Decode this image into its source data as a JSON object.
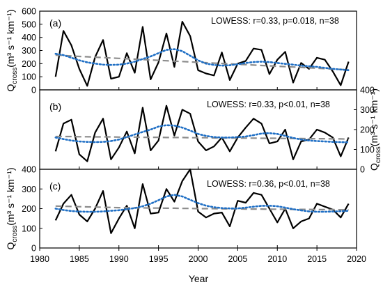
{
  "chart_data": [
    {
      "type": "line",
      "panel_label": "(a)",
      "annotation": "LOWESS: r=0.33, p=0.018, n=38",
      "ylabel_main": "Q",
      "ylabel_sub": "cross",
      "ylabel_units": "(m³ s⁻¹ km⁻¹)",
      "y_axis_side": "left",
      "ylim": [
        0,
        600
      ],
      "yticks": [
        "0",
        "100",
        "200",
        "300",
        "400",
        "500",
        "600"
      ],
      "x": [
        1982,
        1983,
        1984,
        1985,
        1986,
        1987,
        1988,
        1989,
        1990,
        1991,
        1992,
        1993,
        1994,
        1995,
        1996,
        1997,
        1998,
        1999,
        2000,
        2001,
        2002,
        2003,
        2004,
        2005,
        2006,
        2007,
        2008,
        2009,
        2010,
        2011,
        2012,
        2013,
        2014,
        2015,
        2016,
        2017,
        2018,
        2019
      ],
      "series": [
        {
          "values": [
            100,
            450,
            340,
            160,
            30,
            250,
            380,
            85,
            100,
            280,
            130,
            480,
            80,
            210,
            430,
            175,
            520,
            410,
            150,
            125,
            110,
            285,
            75,
            200,
            220,
            315,
            305,
            120,
            230,
            290,
            55,
            205,
            160,
            245,
            230,
            140,
            35,
            215
          ]
        },
        {
          "values": [
            265,
            262,
            258,
            255,
            252,
            249,
            246,
            243,
            240,
            237,
            234,
            231,
            228,
            225,
            222,
            219,
            216,
            213,
            210,
            207,
            204,
            201,
            198,
            195,
            192,
            189,
            186,
            183,
            180,
            177,
            174,
            171,
            168,
            165,
            162,
            159,
            156,
            153
          ]
        },
        {
          "values": [
            275,
            265,
            245,
            225,
            210,
            200,
            192,
            190,
            192,
            200,
            215,
            235,
            255,
            280,
            305,
            310,
            295,
            260,
            225,
            200,
            190,
            185,
            188,
            195,
            205,
            212,
            215,
            212,
            205,
            198,
            192,
            185,
            180,
            175,
            168,
            160,
            155,
            150
          ]
        }
      ]
    },
    {
      "type": "line",
      "panel_label": "(b)",
      "annotation": "LOWESS: r=0.33, p<0.01, n=38",
      "ylabel_main": "Q",
      "ylabel_sub": "cross",
      "ylabel_units": "(m³ s⁻¹ km⁻¹)",
      "y_axis_side": "right",
      "ylim": [
        0,
        400
      ],
      "yticks": [
        "0",
        "100",
        "200",
        "300",
        "400"
      ],
      "x": [
        1982,
        1983,
        1984,
        1985,
        1986,
        1987,
        1988,
        1989,
        1990,
        1991,
        1992,
        1993,
        1994,
        1995,
        1996,
        1997,
        1998,
        1999,
        2000,
        2001,
        2002,
        2003,
        2004,
        2005,
        2006,
        2007,
        2008,
        2009,
        2010,
        2011,
        2012,
        2013,
        2014,
        2015,
        2016,
        2017,
        2018,
        2019
      ],
      "series": [
        {
          "values": [
            90,
            230,
            250,
            75,
            40,
            185,
            255,
            50,
            110,
            190,
            80,
            310,
            95,
            145,
            320,
            170,
            300,
            280,
            140,
            95,
            115,
            160,
            90,
            160,
            210,
            255,
            230,
            130,
            140,
            200,
            50,
            140,
            150,
            200,
            185,
            160,
            65,
            160
          ]
        },
        {
          "values": [
            165,
            165,
            165,
            164,
            164,
            163,
            163,
            163,
            162,
            162,
            162,
            161,
            161,
            161,
            160,
            160,
            160,
            159,
            159,
            159,
            158,
            158,
            158,
            157,
            157,
            157,
            156,
            156,
            156,
            155,
            155,
            155,
            154,
            154,
            154,
            153,
            153,
            152
          ]
        },
        {
          "values": [
            160,
            152,
            145,
            140,
            138,
            137,
            138,
            142,
            150,
            162,
            175,
            188,
            200,
            215,
            222,
            220,
            210,
            195,
            178,
            168,
            162,
            160,
            160,
            162,
            165,
            172,
            180,
            182,
            178,
            168,
            158,
            150,
            145,
            142,
            140,
            138,
            137,
            136
          ]
        }
      ]
    },
    {
      "type": "line",
      "panel_label": "(c)",
      "annotation": "LOWESS: r=0.36, p<0.01, n=38",
      "ylabel_main": "Q",
      "ylabel_sub": "cross",
      "ylabel_units": "(m³ s⁻¹ km⁻¹)",
      "y_axis_side": "left",
      "ylim": [
        0,
        400
      ],
      "yticks": [
        "0",
        "100",
        "200",
        "300",
        "400"
      ],
      "x": [
        1982,
        1983,
        1984,
        1985,
        1986,
        1987,
        1988,
        1989,
        1990,
        1991,
        1992,
        1993,
        1994,
        1995,
        1996,
        1997,
        1998,
        1999,
        2000,
        2001,
        2002,
        2003,
        2004,
        2005,
        2006,
        2007,
        2008,
        2009,
        2010,
        2011,
        2012,
        2013,
        2014,
        2015,
        2016,
        2017,
        2018,
        2019
      ],
      "series": [
        {
          "values": [
            140,
            225,
            270,
            170,
            135,
            200,
            290,
            75,
            150,
            215,
            100,
            325,
            175,
            180,
            300,
            235,
            340,
            400,
            185,
            155,
            175,
            180,
            110,
            240,
            230,
            280,
            270,
            200,
            130,
            200,
            100,
            135,
            150,
            225,
            210,
            195,
            155,
            225
          ]
        },
        {
          "values": [
            213,
            212,
            211,
            210,
            209,
            208,
            207,
            206,
            205,
            205,
            204,
            204,
            203,
            203,
            202,
            202,
            201,
            201,
            200,
            200,
            200,
            199,
            199,
            199,
            198,
            198,
            198,
            197,
            197,
            197,
            196,
            196,
            196,
            195,
            195,
            195,
            194,
            194
          ]
        },
        {
          "values": [
            200,
            193,
            188,
            185,
            184,
            184,
            186,
            189,
            192,
            197,
            203,
            212,
            225,
            243,
            262,
            270,
            262,
            245,
            228,
            215,
            207,
            203,
            201,
            201,
            205,
            210,
            214,
            215,
            212,
            205,
            197,
            191,
            186,
            184,
            184,
            185,
            187,
            189
          ]
        }
      ]
    }
  ],
  "xaxis": {
    "label": "Year",
    "xlim": [
      1980,
      2020
    ],
    "ticks": [
      "1980",
      "1985",
      "1990",
      "1995",
      "2000",
      "2005",
      "2010",
      "2015",
      "2020"
    ]
  },
  "colors": {
    "observed": "#000000",
    "linear_trend": "#8c8c8c",
    "lowess": "#1f6fc5"
  }
}
